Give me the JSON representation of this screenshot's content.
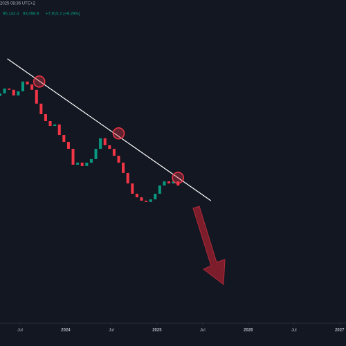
{
  "chart_data": {
    "type": "candlestick",
    "header": {
      "time": "2025 08:36 UTC+2",
      "values": [
        "95,143.4",
        "93,098.9",
        "+7,915.2 (+9.29%)"
      ]
    },
    "x": [
      2023.28,
      2023.33,
      2023.38,
      2023.43,
      2023.48,
      2023.53,
      2023.58,
      2023.63,
      2023.68,
      2023.73,
      2023.78,
      2023.83,
      2023.88,
      2023.93,
      2023.98,
      2024.03,
      2024.08,
      2024.13,
      2024.18,
      2024.23,
      2024.28,
      2024.33,
      2024.38,
      2024.43,
      2024.48,
      2024.53,
      2024.58,
      2024.63,
      2024.68,
      2024.73,
      2024.78,
      2024.83,
      2024.88,
      2024.93,
      2024.98,
      2025.03,
      2025.08,
      2025.13,
      2025.18,
      2025.23
    ],
    "open": [
      128000,
      129000,
      130900,
      130400,
      128200,
      129800,
      133600,
      132500,
      130400,
      125000,
      120900,
      118200,
      116300,
      116900,
      112800,
      110100,
      107400,
      101200,
      102000,
      100700,
      102000,
      103400,
      107400,
      111500,
      108800,
      107400,
      104700,
      102000,
      98000,
      93900,
      89900,
      88500,
      87200,
      86700,
      87700,
      89900,
      93100,
      94700,
      93900,
      94700
    ],
    "close": [
      129000,
      130900,
      130400,
      128200,
      129800,
      133600,
      132500,
      130400,
      125000,
      120900,
      118200,
      116300,
      116900,
      112800,
      110100,
      107400,
      101200,
      102000,
      100700,
      102000,
      103400,
      107400,
      111500,
      108800,
      107400,
      104700,
      102000,
      98000,
      93900,
      89900,
      88500,
      87200,
      86700,
      87700,
      89900,
      93100,
      94700,
      93900,
      94700,
      93100
    ],
    "up_color": "#089981",
    "down_color": "#f23645",
    "trendline": {
      "x": [
        2023.36,
        2025.59
      ],
      "y": [
        142500,
        87200
      ],
      "color": "#ffffff"
    },
    "markers": {
      "x": [
        2023.71,
        2024.58,
        2025.23
      ],
      "y": [
        133600,
        113400,
        96100
      ],
      "color": "#f23645"
    },
    "xlim": [
      2023.28,
      2027.07
    ],
    "ylim": [
      40000,
      160000
    ],
    "xticks": [
      {
        "value": 2023.5,
        "label": "Jul"
      },
      2024,
      {
        "value": 2024.5,
        "label": "Jul"
      },
      2025,
      {
        "value": 2025.5,
        "label": "Jul"
      },
      2026,
      {
        "value": 2026.5,
        "label": "Jul"
      },
      2027
    ]
  }
}
